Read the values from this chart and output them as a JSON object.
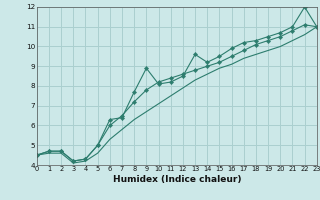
{
  "xlabel": "Humidex (Indice chaleur)",
  "bg_color": "#cce8e8",
  "line_color": "#2d7d6e",
  "grid_color": "#aacfcf",
  "x_values": [
    0,
    1,
    2,
    3,
    4,
    5,
    6,
    7,
    8,
    9,
    10,
    11,
    12,
    13,
    14,
    15,
    16,
    17,
    18,
    19,
    20,
    21,
    22,
    23
  ],
  "line1": [
    4.5,
    4.7,
    4.7,
    4.2,
    4.3,
    5.0,
    6.3,
    6.4,
    7.7,
    8.9,
    8.1,
    8.2,
    8.5,
    9.6,
    9.2,
    9.5,
    9.9,
    10.2,
    10.3,
    10.5,
    10.7,
    11.0,
    12.0,
    11.0
  ],
  "line2": [
    4.5,
    4.7,
    4.7,
    4.2,
    4.3,
    5.0,
    6.0,
    6.5,
    7.2,
    7.8,
    8.2,
    8.4,
    8.6,
    8.8,
    9.0,
    9.2,
    9.5,
    9.8,
    10.1,
    10.3,
    10.5,
    10.8,
    11.1,
    11.0
  ],
  "line3": [
    4.5,
    4.6,
    4.6,
    4.1,
    4.2,
    4.6,
    5.3,
    5.8,
    6.3,
    6.7,
    7.1,
    7.5,
    7.9,
    8.3,
    8.6,
    8.9,
    9.1,
    9.4,
    9.6,
    9.8,
    10.0,
    10.3,
    10.6,
    11.0
  ],
  "xlim": [
    0,
    23
  ],
  "ylim": [
    4.0,
    12.0
  ],
  "yticks": [
    4,
    5,
    6,
    7,
    8,
    9,
    10,
    11,
    12
  ],
  "xticks": [
    0,
    1,
    2,
    3,
    4,
    5,
    6,
    7,
    8,
    9,
    10,
    11,
    12,
    13,
    14,
    15,
    16,
    17,
    18,
    19,
    20,
    21,
    22,
    23
  ]
}
